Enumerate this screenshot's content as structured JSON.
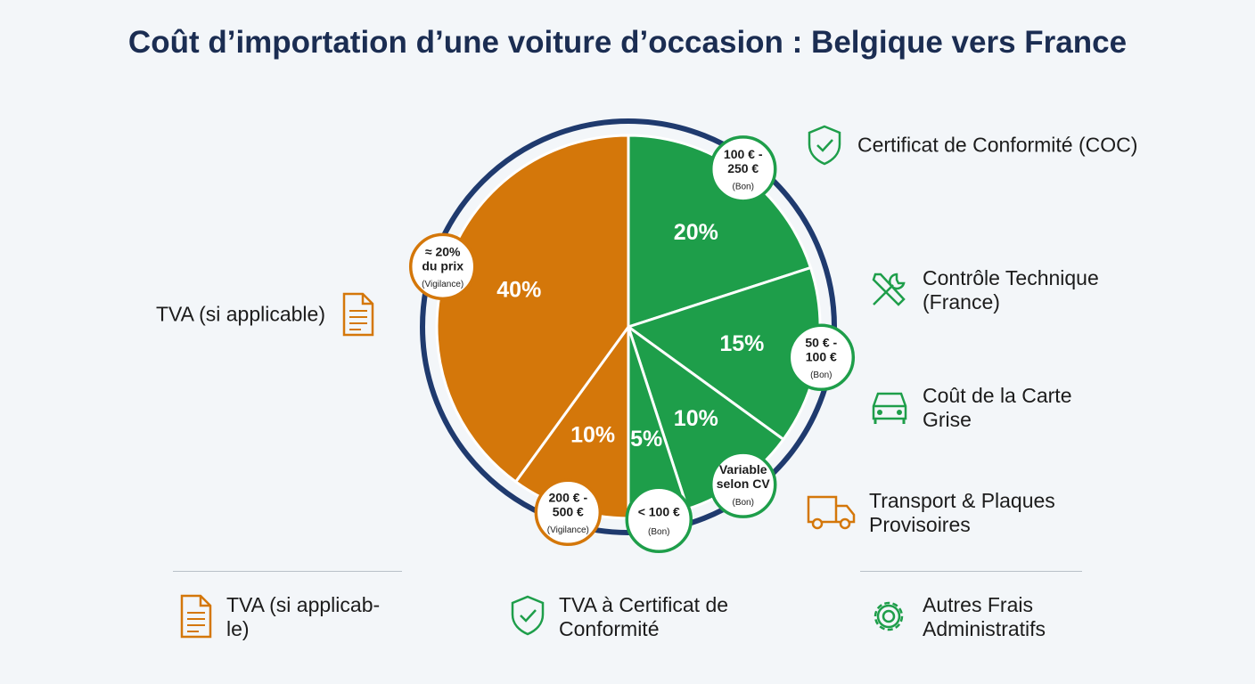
{
  "chart_data": {
    "type": "pie",
    "title": "Coût d’importation d’une voiture d’occasion : Belgique vers France",
    "categories": [
      "Certificat de Conformité (COC)",
      "Contrôle Technique\n(France)",
      "Coût de la Carte\nGrise",
      "Transport & Plaques\nProvisoires",
      null,
      "TVA (si applicable)"
    ],
    "values": [
      20,
      15,
      10,
      5,
      10,
      40
    ],
    "value_labels": [
      "20%",
      "15%",
      "10%",
      "5%",
      "10%",
      "40%"
    ],
    "colors": [
      "#1e9e4a",
      "#1e9e4a",
      "#1e9e4a",
      "#1e9e4a",
      "#d4770a",
      "#d4770a"
    ],
    "ring_color": "#1f3a6e",
    "badges": [
      {
        "text": "100 € -\n250 €",
        "note": "(Bon)"
      },
      {
        "text": "50 € -\n100 €",
        "note": "(Bon)"
      },
      {
        "text": "Variable\nselon CV",
        "note": "(Bon)"
      },
      {
        "text": "< 100 €",
        "note": "(Bon)"
      },
      {
        "text": "200 € -\n500 €",
        "note": "(Vigilance)"
      },
      {
        "text": "≈ 20%\ndu prix",
        "note": "(Vigilance)"
      }
    ]
  },
  "footer": [
    "TVA (si applicab-\nle)",
    "TVA à Certificat de\nConformité",
    "Autres Frais\nAdministratifs"
  ]
}
